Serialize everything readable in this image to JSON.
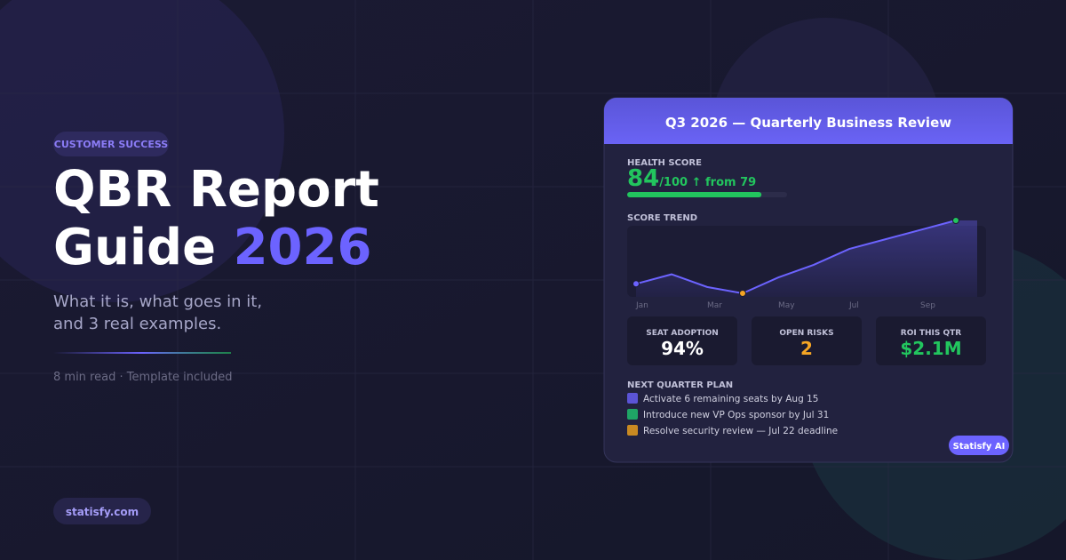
{
  "badge": "CUSTOMER SUCCESS",
  "title_line1": "QBR Report",
  "title_line2": "Guide",
  "title_highlight": "2026",
  "subtitle_line1": "What it is, what goes in it,",
  "subtitle_line2": "and 3 real examples.",
  "meta": "8 min read · Template included",
  "site": "statisfy.com",
  "card": {
    "title": "Q3 2026 — Quarterly Business Review",
    "health_label": "HEALTH SCORE",
    "health_score": 84,
    "health_max": 100,
    "health_suffix": "/100 ↑ from 79",
    "trend_label": "SCORE TREND",
    "chart_data": {
      "type": "line",
      "categories": [
        "Jan",
        null,
        "Mar",
        null,
        "May",
        null,
        "Jul",
        null,
        "Sep",
        null
      ],
      "values": [
        64,
        67,
        63,
        61,
        66,
        70,
        75,
        78,
        81,
        84
      ],
      "color": "#6c63ff"
    },
    "metrics": [
      {
        "label": "SEAT ADOPTION",
        "value": "94%",
        "color": "#ffffff"
      },
      {
        "label": "OPEN RISKS",
        "value": "2",
        "color": "#f5a524"
      },
      {
        "label": "ROI THIS QTR",
        "value": "$2.1M",
        "color": "#22c55e"
      }
    ],
    "plan_label": "NEXT QUARTER PLAN",
    "plan": [
      {
        "text": "Activate 6 remaining seats by Aug 15",
        "color": "#5b54d6"
      },
      {
        "text": "Introduce new VP Ops sponsor by Jul 31",
        "color": "#1fa566"
      },
      {
        "text": "Resolve security review — Jul 22 deadline",
        "color": "#c98a22"
      }
    ],
    "brand_badge": "Statisfy AI"
  }
}
